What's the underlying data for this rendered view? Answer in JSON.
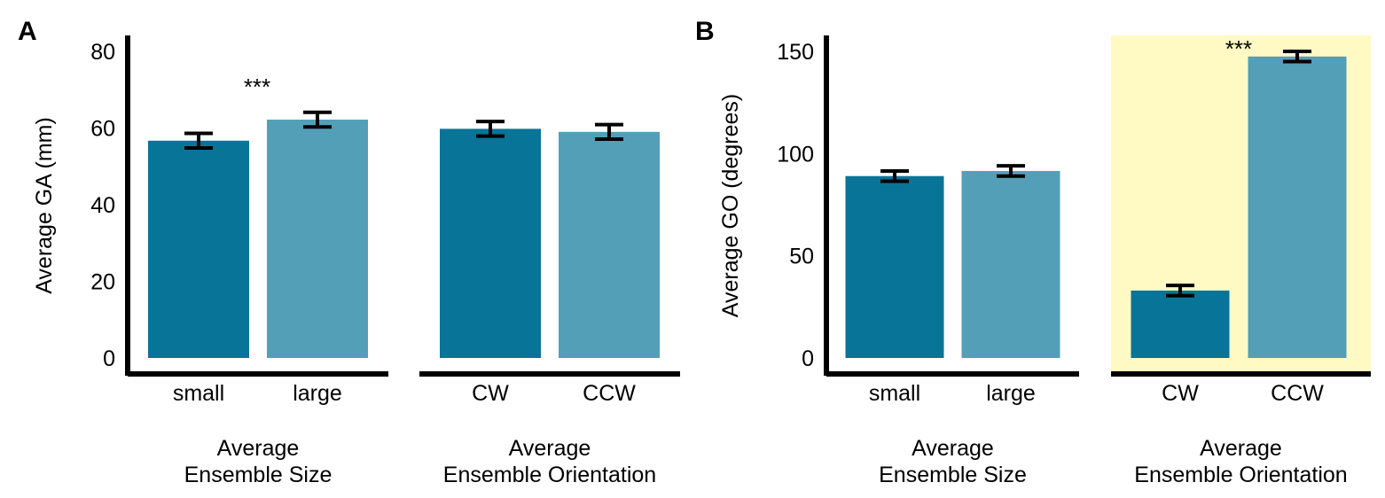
{
  "colors": {
    "dark_bar": "#087498",
    "light_bar": "#539FB8",
    "highlight_bg": "#FFF9C4",
    "axis": "#000000"
  },
  "chart_data": [
    {
      "type": "bar",
      "panel_label": "A",
      "ylabel": "Average GA (mm)",
      "ylim": [
        0,
        80
      ],
      "yticks": [
        0,
        20,
        40,
        60,
        80
      ],
      "groups": [
        {
          "title_lines": [
            "Average",
            "Ensemble Size"
          ],
          "categories": [
            "small",
            "large"
          ],
          "values": [
            56.7,
            62.2
          ],
          "errors": [
            1.9,
            1.9
          ],
          "significance": "***",
          "highlighted": false
        },
        {
          "title_lines": [
            "Average",
            "Ensemble Orientation"
          ],
          "categories": [
            "CW",
            "CCW"
          ],
          "values": [
            59.8,
            59.0
          ],
          "errors": [
            1.9,
            1.9
          ],
          "significance": "",
          "highlighted": false
        }
      ]
    },
    {
      "type": "bar",
      "panel_label": "B",
      "ylabel": "Average GO (degrees)",
      "ylim": [
        0,
        150
      ],
      "yticks": [
        0,
        50,
        100,
        150
      ],
      "groups": [
        {
          "title_lines": [
            "Average",
            "Ensemble Size"
          ],
          "categories": [
            "small",
            "large"
          ],
          "values": [
            89,
            91.5
          ],
          "errors": [
            2.5,
            2.5
          ],
          "significance": "",
          "highlighted": false
        },
        {
          "title_lines": [
            "Average",
            "Ensemble Orientation"
          ],
          "categories": [
            "CW",
            "CCW"
          ],
          "values": [
            33,
            147.5
          ],
          "errors": [
            2.5,
            2.5
          ],
          "significance": "***",
          "highlighted": true
        }
      ]
    }
  ]
}
